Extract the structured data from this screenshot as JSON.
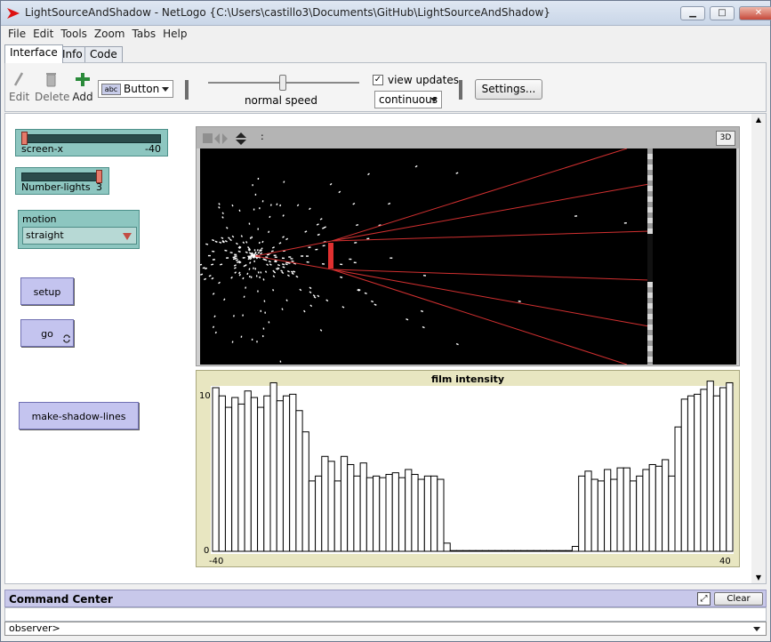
{
  "window": {
    "title": "LightSourceAndShadow - NetLogo {C:\\Users\\castillo3\\Documents\\GitHub\\LightSourceAndShadow}",
    "minimize": "▁",
    "maximize": "□",
    "close": "✕"
  },
  "menu": [
    "File",
    "Edit",
    "Tools",
    "Zoom",
    "Tabs",
    "Help"
  ],
  "tabs": [
    "Interface",
    "Info",
    "Code"
  ],
  "toolbar": {
    "edit_label": "Edit",
    "delete_label": "Delete",
    "add_label": "Add",
    "widget_type": "Button",
    "widget_abc": "abc",
    "speed_label": "normal speed",
    "view_updates_label": "view updates",
    "view_updates_checked": "✓",
    "update_mode": "continuous",
    "settings_label": "Settings..."
  },
  "widgets": {
    "screen_x": {
      "name": "screen-x",
      "value": "-40",
      "level": 0.0
    },
    "number_lights": {
      "name": "Number-lights",
      "value": "3",
      "level": 1.0
    },
    "motion": {
      "name": "motion",
      "value": "straight"
    },
    "setup": "setup",
    "go": "go",
    "go_icon": "forever-icon",
    "make_shadow_lines": "make-shadow-lines"
  },
  "view": {
    "btn_3d": "3D",
    "tick_label": ":"
  },
  "plot": {
    "title": "film intensity",
    "y_max_label": "10",
    "y_min_label": "0",
    "x_min_label": "-40",
    "x_max_label": "40"
  },
  "chart_data": {
    "type": "bar",
    "title": "film intensity",
    "xlim": [
      -40,
      40
    ],
    "ylim": [
      0,
      10
    ],
    "x": [
      -40,
      -39,
      -38,
      -37,
      -36,
      -35,
      -34,
      -33,
      -32,
      -31,
      -30,
      -29,
      -28,
      -27,
      -26,
      -25,
      -24,
      -23,
      -22,
      -21,
      -20,
      -19,
      -18,
      -17,
      -16,
      -15,
      -14,
      -13,
      -12,
      -11,
      -10,
      -9,
      -8,
      -7,
      -6,
      -5,
      -4,
      -3,
      -2,
      -1,
      0,
      1,
      2,
      3,
      4,
      5,
      6,
      7,
      8,
      9,
      10,
      11,
      12,
      13,
      14,
      15,
      16,
      17,
      18,
      19,
      20,
      21,
      22,
      23,
      24,
      25,
      26,
      27,
      28,
      29,
      30,
      31,
      32,
      33,
      34,
      35,
      36,
      37,
      38,
      39,
      40
    ],
    "values": [
      10,
      9.5,
      8.8,
      9.4,
      9,
      9.8,
      9.4,
      8.8,
      9.5,
      10.3,
      9.2,
      9.5,
      9.6,
      8.6,
      7.3,
      4.3,
      4.6,
      5.8,
      5.5,
      4.3,
      5.8,
      5.3,
      4.6,
      5.4,
      4.5,
      4.6,
      4.5,
      4.7,
      4.8,
      4.5,
      5,
      4.7,
      4.4,
      4.6,
      4.6,
      4.4,
      0.5,
      0,
      0,
      0,
      0,
      0,
      0,
      0,
      0,
      0,
      0,
      0,
      0,
      0,
      0,
      0,
      0,
      0,
      0,
      0,
      0.3,
      4.6,
      4.9,
      4.4,
      4.3,
      5,
      4.4,
      5.1,
      5.1,
      4.3,
      4.6,
      5,
      5.3,
      5.2,
      5.6,
      4.6,
      7.6,
      9.3,
      9.5,
      9.6,
      9.9,
      10.4,
      9.5,
      10,
      10.3
    ]
  }
}
